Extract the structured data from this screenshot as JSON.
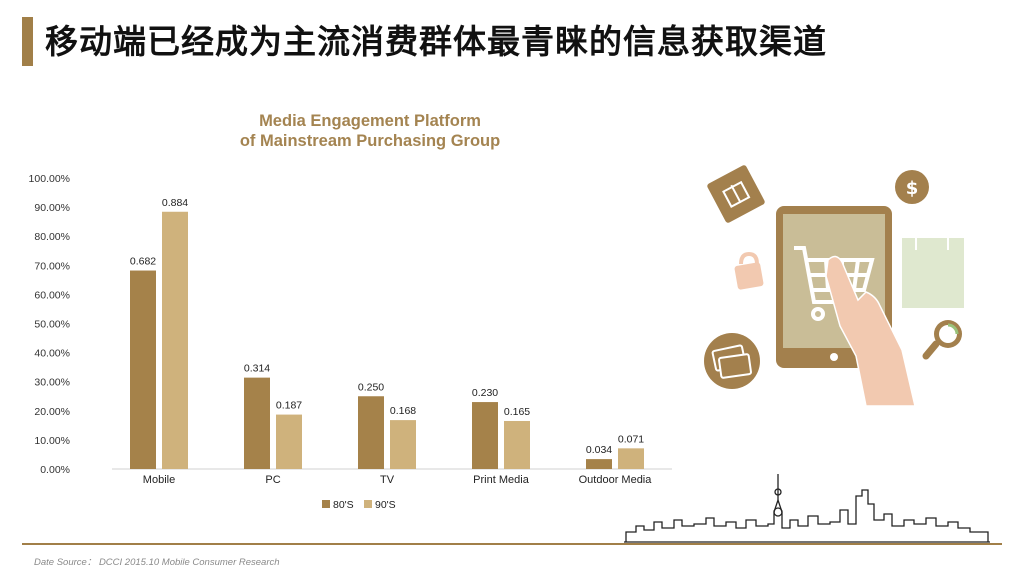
{
  "header": {
    "title": "移动端已经成为主流消费群体最青睐的信息获取渠道"
  },
  "chart_data": {
    "type": "bar",
    "title_line1": "Media Engagement Platform",
    "title_line2": "of Mainstream Purchasing Group",
    "categories": [
      "Mobile",
      "PC",
      "TV",
      "Print Media",
      "Outdoor Media"
    ],
    "series": [
      {
        "name": "80'S",
        "values": [
          0.682,
          0.314,
          0.25,
          0.23,
          0.034
        ],
        "labels": [
          "0.682",
          "0.314",
          "0.250",
          "0.230",
          "0.034"
        ],
        "color": "#a5824a"
      },
      {
        "name": "90'S",
        "values": [
          0.884,
          0.187,
          0.168,
          0.165,
          0.071
        ],
        "labels": [
          "0.884",
          "0.187",
          "0.168",
          "0.165",
          "0.071"
        ],
        "color": "#cfb27c"
      }
    ],
    "ylim": [
      0,
      1
    ],
    "yticks": [
      "0.00%",
      "10.00%",
      "20.00%",
      "30.00%",
      "40.00%",
      "50.00%",
      "60.00%",
      "70.00%",
      "80.00%",
      "90.00%",
      "100.00%"
    ],
    "legend_position": "bottom",
    "grid": false
  },
  "footer": {
    "source": "Date Source： DCCI 2015.10 Mobile Consumer Research"
  },
  "colors": {
    "accent": "#a17f48",
    "chart_title": "#a48451",
    "illustration_brown": "#a3804d",
    "illustration_beige": "#c9bd97",
    "illustration_green": "#dfe8cf",
    "illustration_pink": "#f2c9b0"
  }
}
